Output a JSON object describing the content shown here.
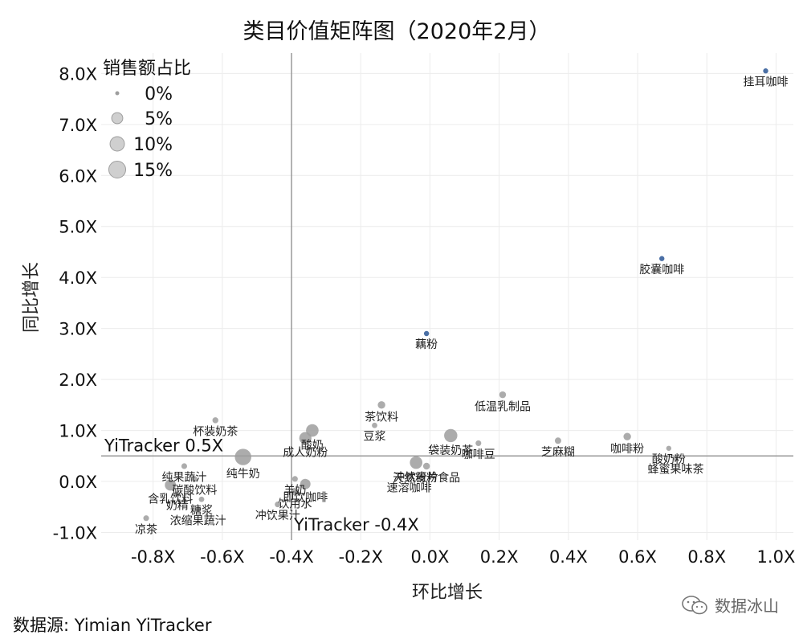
{
  "source": "数据源: Yimian YiTracker",
  "watermark": "数据冰山",
  "chart_data": {
    "type": "scatter",
    "title": "类目价值矩阵图（2020年2月）",
    "xlabel": "环比增长",
    "ylabel": "同比增长",
    "xlim": [
      -0.95,
      1.05
    ],
    "ylim": [
      -1.15,
      8.4
    ],
    "x_ticks": [
      -0.8,
      -0.6,
      -0.4,
      -0.2,
      0.0,
      0.2,
      0.4,
      0.6,
      0.8,
      1.0
    ],
    "x_tick_labels": [
      "-0.8X",
      "-0.6X",
      "-0.4X",
      "-0.2X",
      "0.0X",
      "0.2X",
      "0.4X",
      "0.6X",
      "0.8X",
      "1.0X"
    ],
    "y_ticks": [
      -1.0,
      0.0,
      1.0,
      2.0,
      3.0,
      4.0,
      5.0,
      6.0,
      7.0,
      8.0
    ],
    "y_tick_labels": [
      "-1.0X",
      "0.0X",
      "1.0X",
      "2.0X",
      "3.0X",
      "4.0X",
      "5.0X",
      "6.0X",
      "7.0X",
      "8.0X"
    ],
    "grid": true,
    "reference_lines": [
      {
        "axis": "x",
        "value": -0.4,
        "label": "YiTracker -0.4X"
      },
      {
        "axis": "y",
        "value": 0.5,
        "label": "YiTracker 0.5X"
      }
    ],
    "size_legend": {
      "title": "销售额占比",
      "placement": "top-left",
      "entries": [
        {
          "label": "0%",
          "value": 0
        },
        {
          "label": "5%",
          "value": 5
        },
        {
          "label": "10%",
          "value": 10
        },
        {
          "label": "15%",
          "value": 15
        }
      ]
    },
    "colors": {
      "highlight": "#4a6fa5",
      "default": "#9e9e9e",
      "refline": "#999999"
    },
    "points": [
      {
        "name": "挂耳咖啡",
        "x": 0.97,
        "y": 8.05,
        "size": 0.3,
        "highlight": true
      },
      {
        "name": "胶囊咖啡",
        "x": 0.67,
        "y": 4.37,
        "size": 0.3,
        "highlight": true
      },
      {
        "name": "藕粉",
        "x": -0.01,
        "y": 2.9,
        "size": 0.3,
        "highlight": true
      },
      {
        "name": "低温乳制品",
        "x": 0.21,
        "y": 1.7,
        "size": 1.0
      },
      {
        "name": "茶饮料",
        "x": -0.14,
        "y": 1.5,
        "size": 1.5
      },
      {
        "name": "杯装奶茶",
        "x": -0.62,
        "y": 1.2,
        "size": 0.6
      },
      {
        "name": "豆浆",
        "x": -0.16,
        "y": 1.1,
        "size": 0.4
      },
      {
        "name": "袋装奶茶",
        "x": 0.06,
        "y": 0.9,
        "size": 8.0
      },
      {
        "name": "咖啡豆",
        "x": 0.14,
        "y": 0.75,
        "size": 0.5
      },
      {
        "name": "酸奶",
        "x": -0.34,
        "y": 1.0,
        "size": 7.0
      },
      {
        "name": "成人奶粉",
        "x": -0.36,
        "y": 0.85,
        "size": 6.5
      },
      {
        "name": "纯牛奶",
        "x": -0.54,
        "y": 0.48,
        "size": 14.0
      },
      {
        "name": "冲饮麦片",
        "x": -0.04,
        "y": 0.37,
        "size": 7.0
      },
      {
        "name": "天然粉粉食品",
        "x": -0.01,
        "y": 0.3,
        "size": 1.0
      },
      {
        "name": "速溶咖啡",
        "x": -0.06,
        "y": 0.1,
        "size": 0.8
      },
      {
        "name": "芝麻糊",
        "x": 0.37,
        "y": 0.8,
        "size": 0.8
      },
      {
        "name": "咖啡粉",
        "x": 0.57,
        "y": 0.88,
        "size": 1.5
      },
      {
        "name": "酸奶粉",
        "x": 0.69,
        "y": 0.65,
        "size": 0.3
      },
      {
        "name": "蜂蜜果味茶",
        "x": 0.71,
        "y": 0.45,
        "size": 0.3
      },
      {
        "name": "纯果蔬汁",
        "x": -0.71,
        "y": 0.3,
        "size": 0.5
      },
      {
        "name": "碳酸饮料",
        "x": -0.68,
        "y": 0.05,
        "size": 0.5
      },
      {
        "name": "含乳饮料",
        "x": -0.75,
        "y": -0.07,
        "size": 5.0
      },
      {
        "name": "奶精",
        "x": -0.73,
        "y": -0.25,
        "size": 0.4
      },
      {
        "name": "糖浆",
        "x": -0.66,
        "y": -0.35,
        "size": 0.4
      },
      {
        "name": "浓缩果蔬汁",
        "x": -0.67,
        "y": -0.55,
        "size": 0.4
      },
      {
        "name": "凉茶",
        "x": -0.82,
        "y": -0.72,
        "size": 0.5
      },
      {
        "name": "羊奶",
        "x": -0.39,
        "y": 0.05,
        "size": 0.5
      },
      {
        "name": "即饮咖啡",
        "x": -0.36,
        "y": -0.05,
        "size": 4.0
      },
      {
        "name": "饮用水",
        "x": -0.39,
        "y": -0.2,
        "size": 1.5
      },
      {
        "name": "冲饮果汁",
        "x": -0.44,
        "y": -0.45,
        "size": 0.5
      }
    ]
  }
}
